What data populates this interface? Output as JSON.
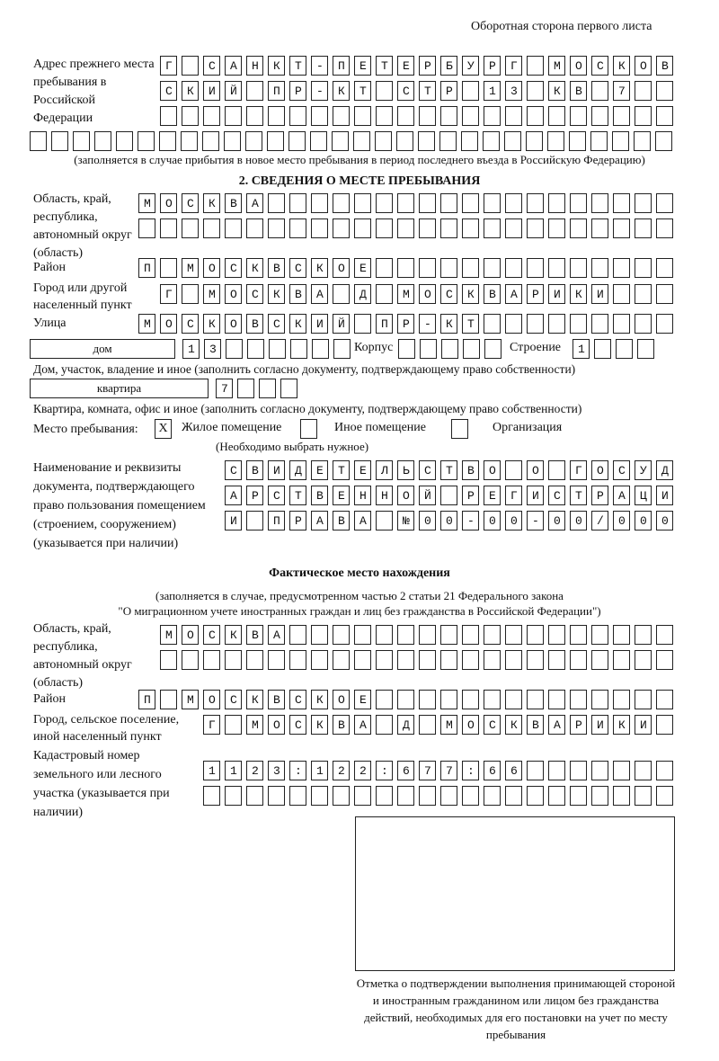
{
  "header": "Оборотная сторона первого листа",
  "prev_address": {
    "label": "Адрес прежнего места пребывания в Российской Федерации",
    "rows": [
      "Г САНКТ-ПЕТЕРБУРГ МОСКОВ",
      "СКИЙ ПР-КТ СТР 13 КВ 7",
      "",
      ""
    ],
    "note": "(заполняется в случае прибытия в новое место пребывания в период последнего въезда в Российскую Федерацию)"
  },
  "section2": {
    "title": "2. СВЕДЕНИЯ О МЕСТЕ ПРЕБЫВАНИЯ",
    "region_label": "Область, край, республика, автономный округ (область)",
    "region_rows": [
      "МОСКВА",
      ""
    ],
    "district_label": "Район",
    "district": "П МОСКВСКОЕ",
    "city_label": "Город или другой населенный пункт",
    "city": "Г МОСКВА Д МОСКВАРИКИ",
    "street_label": "Улица",
    "street": "МОСКОВСКИЙ ПР-КТ",
    "house_type": "дом",
    "house": "13",
    "korpus_label": "Корпус",
    "korpus": "",
    "building_label": "Строение",
    "building": "1",
    "house_note": "Дом, участок, владение и иное (заполнить согласно документу, подтверждающему право собственности)",
    "flat_type": "квартира",
    "flat": "7",
    "flat_note": "Квартира, комната, офис и иное (заполнить согласно документу, подтверждающему право собственности)",
    "stay_label": "Место пребывания:",
    "options": [
      {
        "label": "Жилое помещение",
        "mark": "X"
      },
      {
        "label": "Иное помещение",
        "mark": ""
      },
      {
        "label": "Организация",
        "mark": ""
      }
    ],
    "options_note": "(Необходимо выбрать нужное)",
    "doc_label": "Наименование и реквизиты документа, подтверждающего право пользования помещением (строением, сооружением) (указывается при наличии)",
    "doc_rows": [
      "СВИДЕТЕЛЬСТВО О ГОСУД",
      "АРСТВЕННОЙ РЕГИСТРАЦИ",
      "И ПРАВА №00-00-00/000"
    ]
  },
  "actual": {
    "title": "Фактическое место нахождения",
    "note1": "(заполняется в случае, предусмотренном частью 2 статьи 21 Федерального закона",
    "note2": "\"О миграционном учете иностранных граждан и лиц без гражданства в Российской Федерации\")",
    "region_label": "Область, край, республика, автономный округ (область)",
    "region_rows": [
      "МОСКВА",
      ""
    ],
    "district_label": "Район",
    "district": "П МОСКВСКОЕ",
    "city_label": "Город, сельское поселение, иной населенный пункт",
    "city": "Г МОСКВА Д МОСКВАРИКИ",
    "cadastre_label": "Кадастровый номер земельного или лесного участка (указывается при наличии)",
    "cadastre_rows": [
      "1123:122:677:66",
      ""
    ]
  },
  "stamp_caption": "Отметка о подтверждении выполнения принимающей стороной и иностранным гражданином или лицом без гражданства действий, необходимых для его постановки на учет по месту пребывания"
}
